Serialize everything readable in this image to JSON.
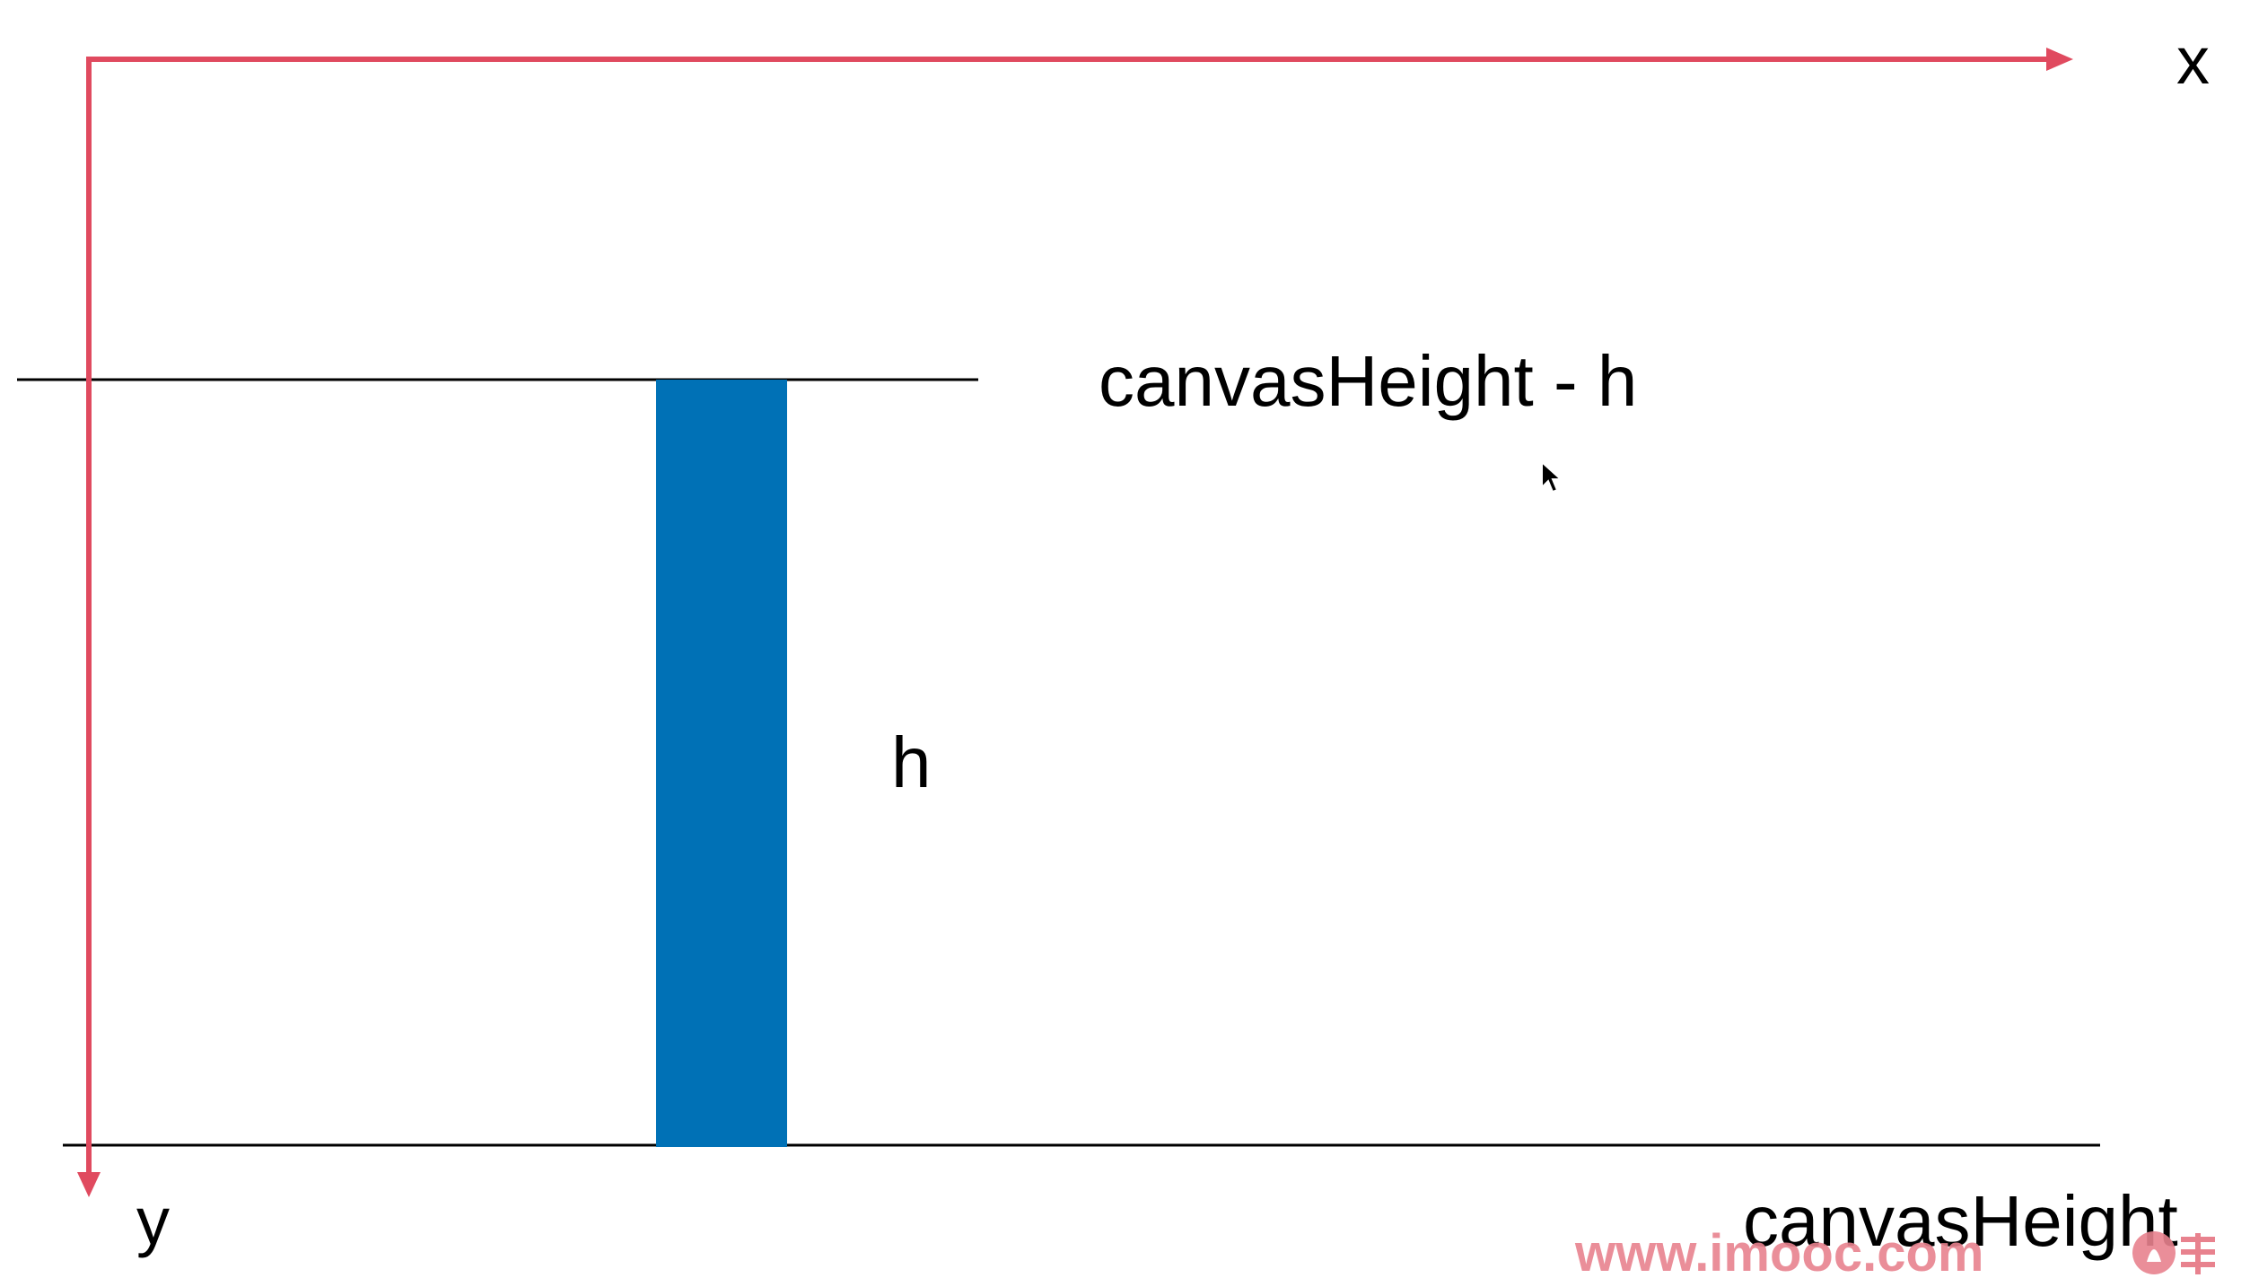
{
  "diagram": {
    "axes": {
      "x_label": "x",
      "y_label": "y",
      "axis_color": "#e04a5f"
    },
    "labels": {
      "top_line": "canvasHeight - h",
      "bar_height": "h",
      "bottom_line": "canvasHeight"
    },
    "bar_color": "#0071b6",
    "line_color": "#000000"
  },
  "watermark": {
    "text": "www.imooc.com",
    "color": "#e8828e"
  }
}
